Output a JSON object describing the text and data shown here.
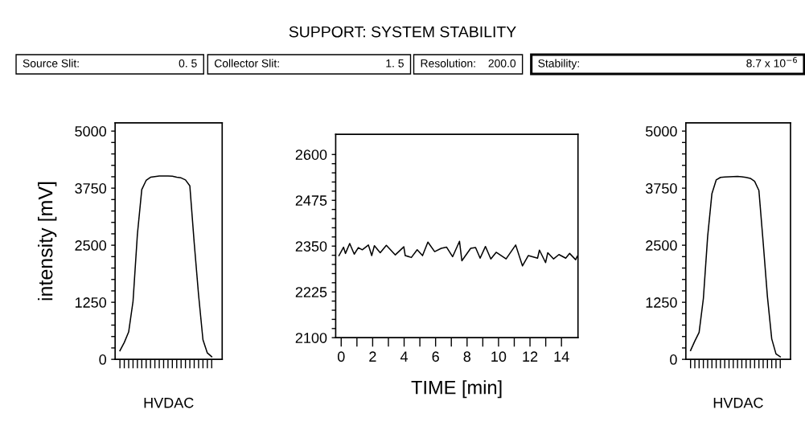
{
  "chart_data": [
    {
      "type": "line",
      "xlabel": "HVDAC",
      "ylabel": "intensity [mV]",
      "tick_labels": "y",
      "marker": "none",
      "line_style": "solid",
      "grid": false,
      "legend": false,
      "categories": [
        null,
        null,
        null,
        null,
        null,
        null,
        null,
        null,
        null,
        null,
        null,
        null,
        null,
        null,
        null,
        null,
        null,
        null,
        null,
        null,
        null,
        null
      ],
      "series": [
        {
          "color": "#000000",
          "values": [
            188,
            370,
            600,
            1270,
            2740,
            3720,
            3920,
            3988,
            4005,
            4015,
            4018,
            4015,
            4012,
            3990,
            3975,
            3930,
            3800,
            2550,
            1412,
            430,
            140,
            59
          ]
        }
      ],
      "ylim": [
        0,
        5180
      ],
      "yticks": [
        0,
        {
          "value": 250,
          "label": null
        },
        {
          "value": 500,
          "label": null
        },
        {
          "value": 750,
          "label": null
        },
        {
          "value": 1000,
          "label": null
        },
        1250,
        {
          "value": 1500,
          "label": null
        },
        {
          "value": 1750,
          "label": null
        },
        {
          "value": 2000,
          "label": null
        },
        {
          "value": 2250,
          "label": null
        },
        2500,
        {
          "value": 2750,
          "label": null
        },
        {
          "value": 3000,
          "label": null
        },
        {
          "value": 3250,
          "label": null
        },
        {
          "value": 3500,
          "label": null
        },
        3750,
        {
          "value": 4000,
          "label": null
        },
        {
          "value": 4250,
          "label": null
        },
        {
          "value": 4500,
          "label": null
        },
        {
          "value": 4750,
          "label": null
        },
        5000
      ]
    },
    {
      "type": "line",
      "title": "SUPPORT: SYSTEM STABILITY",
      "xlabel": "TIME [min]",
      "marker": "none",
      "line_style": "solid",
      "grid": false,
      "legend": false,
      "annotations": [
        "Source Slit:",
        "0. 5",
        "Collector Slit:",
        "1. 5",
        "Resolution:",
        "200.0",
        "Stability:",
        "8.7 x 10$^{−6}$"
      ],
      "x": [
        -0.14,
        0.15,
        0.27,
        0.54,
        0.83,
        1.09,
        1.34,
        1.73,
        1.94,
        2.11,
        2.48,
        2.87,
        3.44,
        3.98,
        4.07,
        4.46,
        4.83,
        5.17,
        5.51,
        5.94,
        6.36,
        6.7,
        7.08,
        7.52,
        7.67,
        8.23,
        8.54,
        8.83,
        9.17,
        9.51,
        9.85,
        10.48,
        11.09,
        11.52,
        11.89,
        12.48,
        12.6,
        12.99,
        13.13,
        13.5,
        13.84,
        14.27,
        14.52,
        14.9,
        15.0
      ],
      "series": [
        {
          "color": "#000000",
          "values": [
            2324,
            2347,
            2330,
            2357,
            2328,
            2346,
            2340,
            2353,
            2324,
            2351,
            2332,
            2352,
            2326,
            2348,
            2324,
            2319,
            2340,
            2324,
            2361,
            2335,
            2344,
            2347,
            2321,
            2363,
            2310,
            2344,
            2346,
            2317,
            2349,
            2315,
            2333,
            2315,
            2353,
            2296,
            2324,
            2317,
            2339,
            2305,
            2332,
            2315,
            2327,
            2317,
            2330,
            2313,
            2322
          ]
        }
      ],
      "xlim": [
        -0.35,
        15.05
      ],
      "xticks": [
        0,
        {
          "value": 1,
          "label": null
        },
        2,
        {
          "value": 3,
          "label": null
        },
        4,
        {
          "value": 5,
          "label": null
        },
        6,
        {
          "value": 7,
          "label": null
        },
        8,
        {
          "value": 9,
          "label": null
        },
        10,
        {
          "value": 11,
          "label": null
        },
        12,
        {
          "value": 13,
          "label": null
        },
        14
      ],
      "ylim": [
        2100,
        2655
      ],
      "yticks": [
        2100,
        {
          "value": 2125,
          "label": null
        },
        {
          "value": 2150,
          "label": null
        },
        {
          "value": 2175,
          "label": null
        },
        {
          "value": 2200,
          "label": null
        },
        2225,
        {
          "value": 2250,
          "label": null
        },
        {
          "value": 2275,
          "label": null
        },
        {
          "value": 2300,
          "label": null
        },
        {
          "value": 2325,
          "label": null
        },
        2350,
        {
          "value": 2375,
          "label": null
        },
        {
          "value": 2400,
          "label": null
        },
        {
          "value": 2425,
          "label": null
        },
        {
          "value": 2450,
          "label": null
        },
        2475,
        {
          "value": 2500,
          "label": null
        },
        {
          "value": 2525,
          "label": null
        },
        {
          "value": 2550,
          "label": null
        },
        {
          "value": 2575,
          "label": null
        },
        2600
      ]
    },
    {
      "type": "line",
      "xlabel": "HVDAC",
      "tick_labels": "y",
      "marker": "none",
      "line_style": "solid",
      "grid": false,
      "legend": false,
      "categories": [
        null,
        null,
        null,
        null,
        null,
        null,
        null,
        null,
        null,
        null,
        null,
        null,
        null,
        null,
        null,
        null,
        null,
        null,
        null,
        null,
        null,
        null
      ],
      "series": [
        {
          "color": "#000000",
          "values": [
            193,
            400,
            590,
            1332,
            2690,
            3630,
            3930,
            3985,
            3995,
            4000,
            4005,
            4007,
            4000,
            3985,
            3965,
            3900,
            3700,
            2560,
            1370,
            450,
            120,
            58
          ]
        }
      ],
      "ylim": [
        0,
        5180
      ],
      "yticks": [
        0,
        {
          "value": 250,
          "label": null
        },
        {
          "value": 500,
          "label": null
        },
        {
          "value": 750,
          "label": null
        },
        {
          "value": 1000,
          "label": null
        },
        1250,
        {
          "value": 1500,
          "label": null
        },
        {
          "value": 1750,
          "label": null
        },
        {
          "value": 2000,
          "label": null
        },
        {
          "value": 2250,
          "label": null
        },
        2500,
        {
          "value": 2750,
          "label": null
        },
        {
          "value": 3000,
          "label": null
        },
        {
          "value": 3250,
          "label": null
        },
        {
          "value": 3500,
          "label": null
        },
        3750,
        {
          "value": 4000,
          "label": null
        },
        {
          "value": 4250,
          "label": null
        },
        {
          "value": 4500,
          "label": null
        },
        {
          "value": 4750,
          "label": null
        },
        5000
      ]
    }
  ]
}
